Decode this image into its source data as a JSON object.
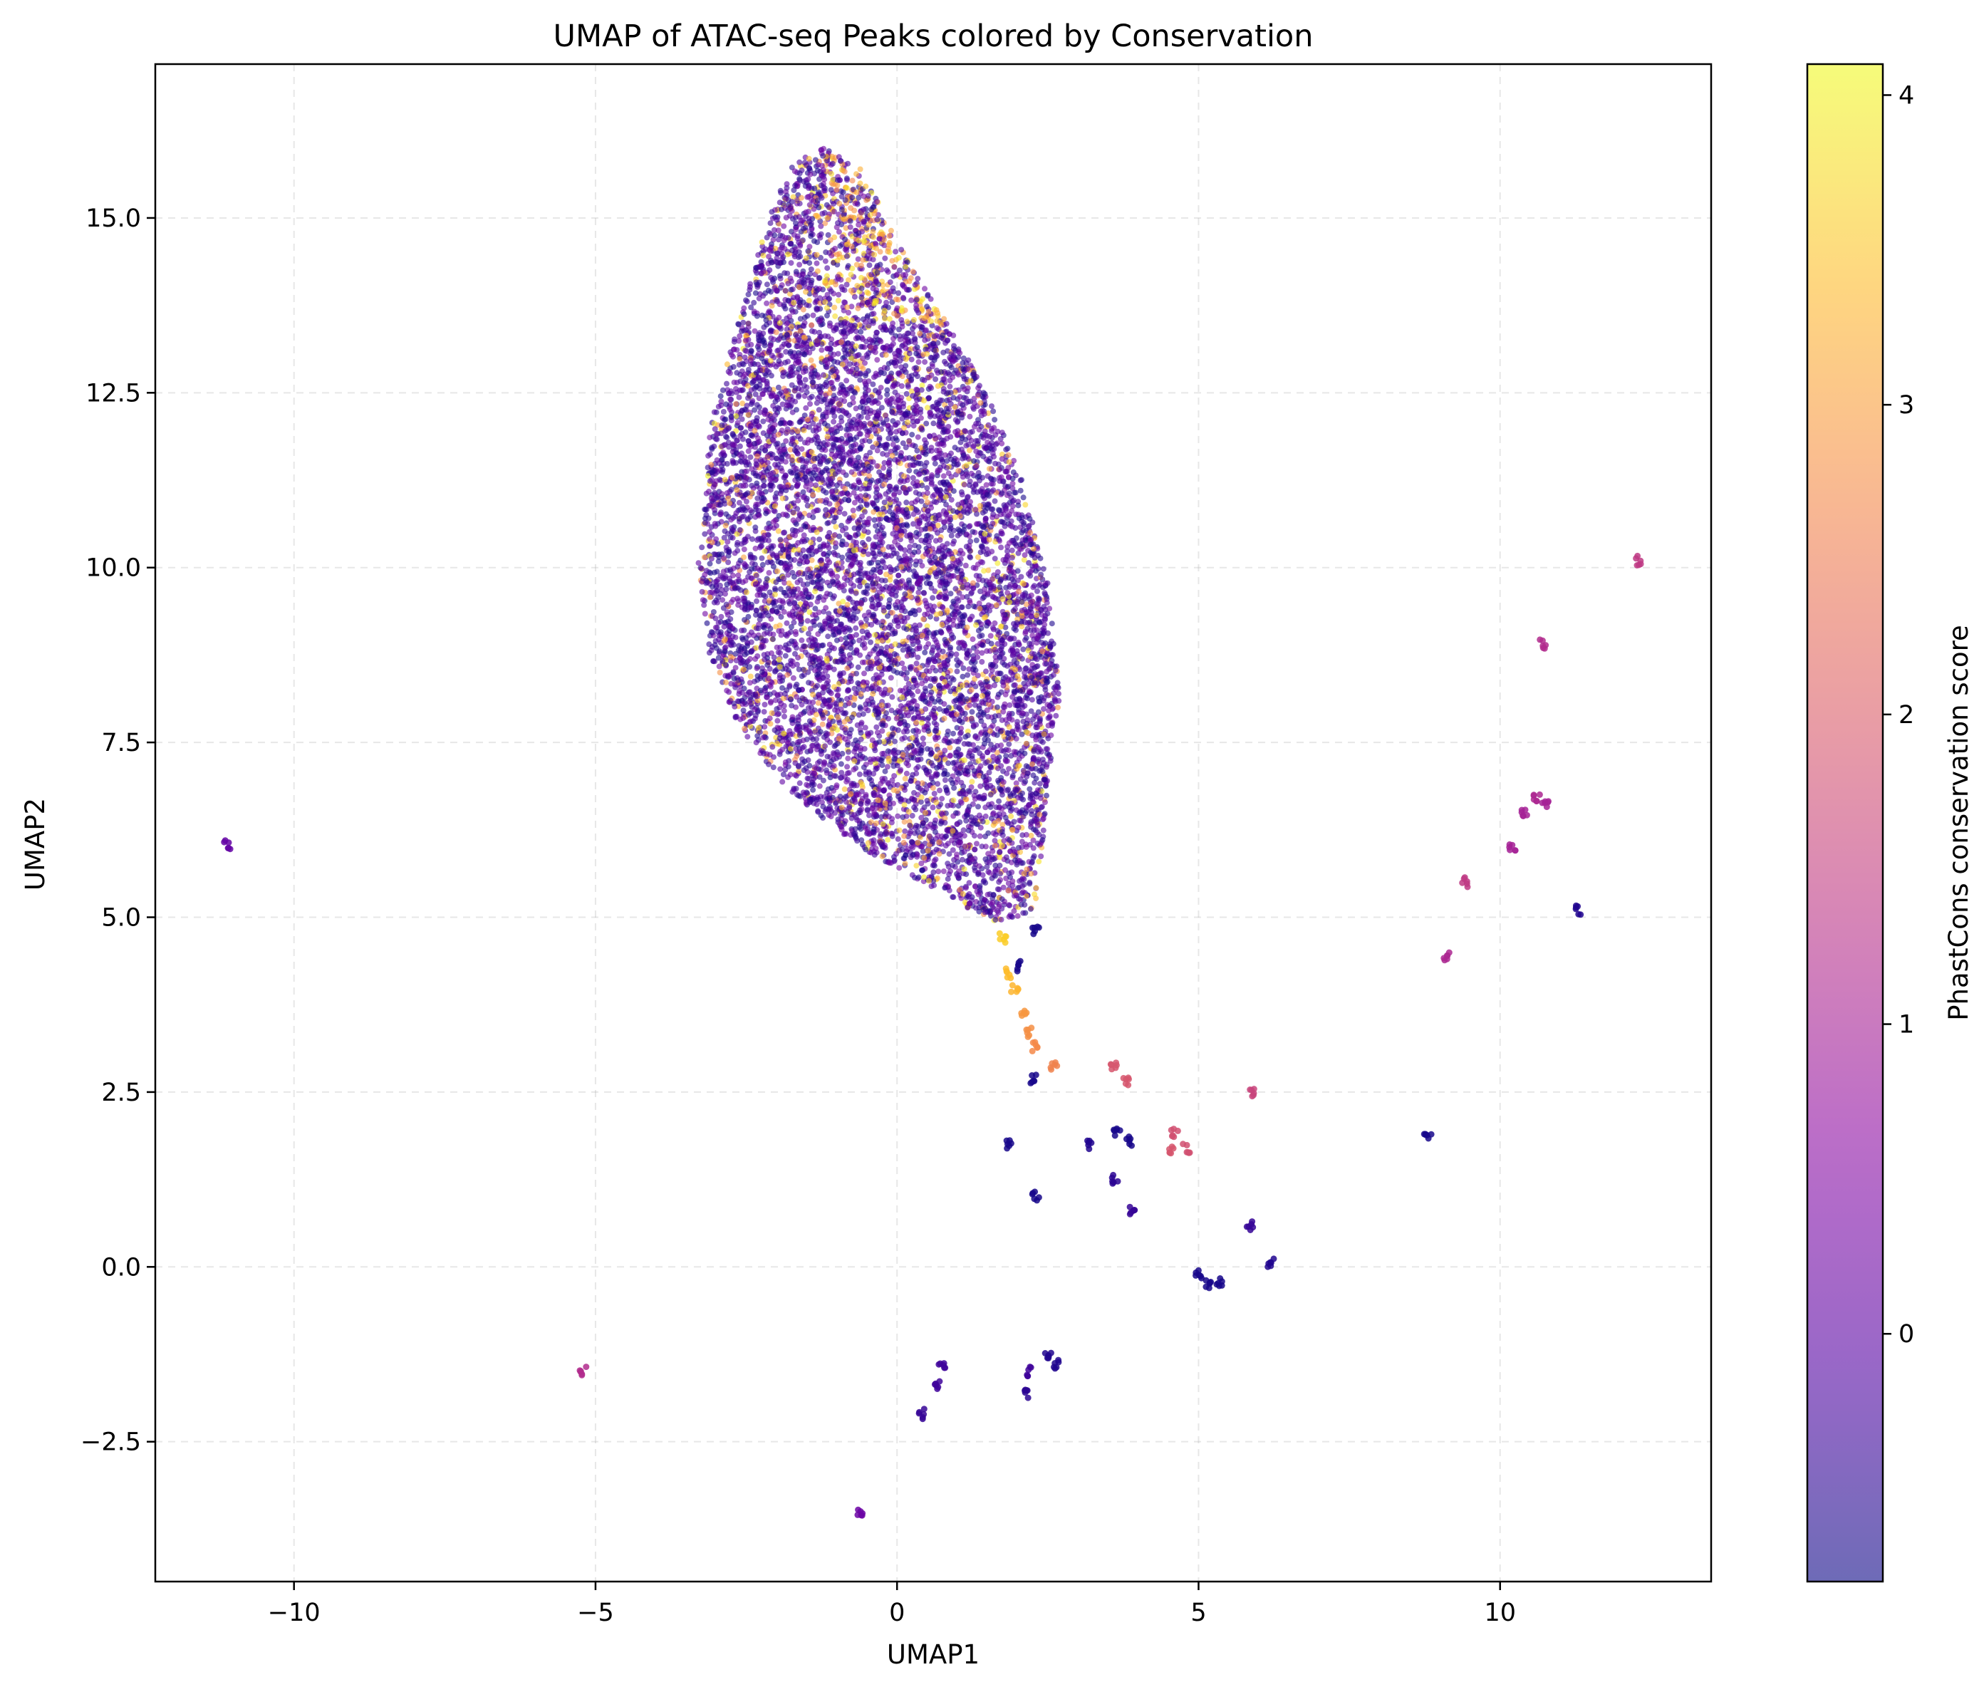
{
  "chart_data": {
    "type": "scatter",
    "title": "UMAP of ATAC-seq Peaks colored by Conservation",
    "xlabel": "UMAP1",
    "ylabel": "UMAP2",
    "xlim": [
      -12.3,
      13.5
    ],
    "ylim": [
      -4.5,
      17.2
    ],
    "xticks": [
      -10,
      -5,
      0,
      5,
      10
    ],
    "xtick_labels": [
      "−10",
      "−5",
      "0",
      "5",
      "10"
    ],
    "yticks": [
      -2.5,
      0.0,
      2.5,
      5.0,
      7.5,
      10.0,
      12.5,
      15.0
    ],
    "ytick_labels": [
      "−2.5",
      "0.0",
      "2.5",
      "5.0",
      "7.5",
      "10.0",
      "12.5",
      "15.0"
    ],
    "grid": true,
    "colormap": "plasma",
    "point_alpha": 0.6,
    "colorbar": {
      "label": "PhastCons conservation score",
      "range": [
        -0.8,
        4.1
      ],
      "ticks": [
        0,
        1,
        2,
        3,
        4
      ],
      "tick_labels": [
        "0",
        "1",
        "2",
        "3",
        "4"
      ]
    },
    "main_cluster": {
      "description_outline": [
        [
          -1.2,
          16.0
        ],
        [
          -0.6,
          15.7
        ],
        [
          0.3,
          14.2
        ],
        [
          1.2,
          13.0
        ],
        [
          2.0,
          11.5
        ],
        [
          2.5,
          9.8
        ],
        [
          2.7,
          8.2
        ],
        [
          2.5,
          6.8
        ],
        [
          2.3,
          5.1
        ],
        [
          1.7,
          4.9
        ],
        [
          0.8,
          5.3
        ],
        [
          -0.6,
          6.0
        ],
        [
          -1.8,
          6.8
        ],
        [
          -2.6,
          7.7
        ],
        [
          -3.1,
          8.7
        ],
        [
          -3.3,
          10.0
        ],
        [
          -3.1,
          12.0
        ],
        [
          -2.6,
          13.6
        ],
        [
          -2.1,
          15.1
        ],
        [
          -1.7,
          15.8
        ]
      ],
      "n_points": 9000,
      "typical_scores": [
        -0.7,
        0.3
      ],
      "high_score_fraction": 0.12
    },
    "stream": [
      {
        "x": 1.75,
        "y": 4.7,
        "score": 3.6
      },
      {
        "x": 1.85,
        "y": 4.2,
        "score": 3.4
      },
      {
        "x": 1.95,
        "y": 4.0,
        "score": 3.3
      },
      {
        "x": 2.1,
        "y": 3.6,
        "score": 2.9
      },
      {
        "x": 2.2,
        "y": 3.35,
        "score": 2.8
      },
      {
        "x": 2.3,
        "y": 3.15,
        "score": 2.7
      },
      {
        "x": 2.6,
        "y": 2.85,
        "score": 2.6
      },
      {
        "x": 2.05,
        "y": 4.3,
        "score": -0.7
      },
      {
        "x": 2.3,
        "y": 4.8,
        "score": -0.7
      }
    ],
    "outliers": [
      {
        "x": -11.1,
        "y": 6.05,
        "score": 0.1
      },
      {
        "x": -5.2,
        "y": -1.5,
        "score": 1.2
      },
      {
        "x": -0.6,
        "y": -3.5,
        "score": 0.2
      },
      {
        "x": 12.3,
        "y": 10.1,
        "score": 1.4
      },
      {
        "x": 10.7,
        "y": 8.9,
        "score": 1.2
      },
      {
        "x": 10.6,
        "y": 6.7,
        "score": 1.1
      },
      {
        "x": 10.4,
        "y": 6.5,
        "score": 1.0
      },
      {
        "x": 10.75,
        "y": 6.65,
        "score": 1.0
      },
      {
        "x": 10.2,
        "y": 6.0,
        "score": 1.0
      },
      {
        "x": 9.4,
        "y": 5.5,
        "score": 1.4
      },
      {
        "x": 11.3,
        "y": 5.1,
        "score": -0.6
      },
      {
        "x": 9.1,
        "y": 4.45,
        "score": 1.1
      },
      {
        "x": 8.8,
        "y": 1.9,
        "score": -0.7
      },
      {
        "x": 5.9,
        "y": 2.5,
        "score": 1.6
      },
      {
        "x": 3.6,
        "y": 2.85,
        "score": 1.9
      },
      {
        "x": 3.8,
        "y": 2.65,
        "score": 1.9
      },
      {
        "x": 2.25,
        "y": 2.7,
        "score": -0.7
      },
      {
        "x": 1.85,
        "y": 1.75,
        "score": -0.7
      },
      {
        "x": 3.2,
        "y": 1.75,
        "score": -0.6
      },
      {
        "x": 3.65,
        "y": 1.95,
        "score": -0.7
      },
      {
        "x": 3.85,
        "y": 1.8,
        "score": -0.7
      },
      {
        "x": 4.6,
        "y": 1.9,
        "score": 1.8
      },
      {
        "x": 4.8,
        "y": 1.7,
        "score": 1.8
      },
      {
        "x": 4.55,
        "y": 1.65,
        "score": 1.9
      },
      {
        "x": 2.3,
        "y": 1.0,
        "score": -0.7
      },
      {
        "x": 3.6,
        "y": 1.25,
        "score": -0.5
      },
      {
        "x": 3.9,
        "y": 0.8,
        "score": -0.4
      },
      {
        "x": 5.85,
        "y": 0.6,
        "score": -0.4
      },
      {
        "x": 6.2,
        "y": 0.05,
        "score": -0.6
      },
      {
        "x": 5.0,
        "y": -0.1,
        "score": -0.7
      },
      {
        "x": 5.15,
        "y": -0.25,
        "score": -0.7
      },
      {
        "x": 5.35,
        "y": -0.2,
        "score": -0.7
      },
      {
        "x": 0.75,
        "y": -1.4,
        "score": -0.3
      },
      {
        "x": 0.65,
        "y": -1.7,
        "score": -0.3
      },
      {
        "x": 0.4,
        "y": -2.1,
        "score": -0.4
      },
      {
        "x": 2.5,
        "y": -1.3,
        "score": -0.6
      },
      {
        "x": 2.65,
        "y": -1.4,
        "score": -0.6
      },
      {
        "x": 2.2,
        "y": -1.5,
        "score": -0.3
      },
      {
        "x": 2.15,
        "y": -1.8,
        "score": -0.5
      }
    ]
  }
}
